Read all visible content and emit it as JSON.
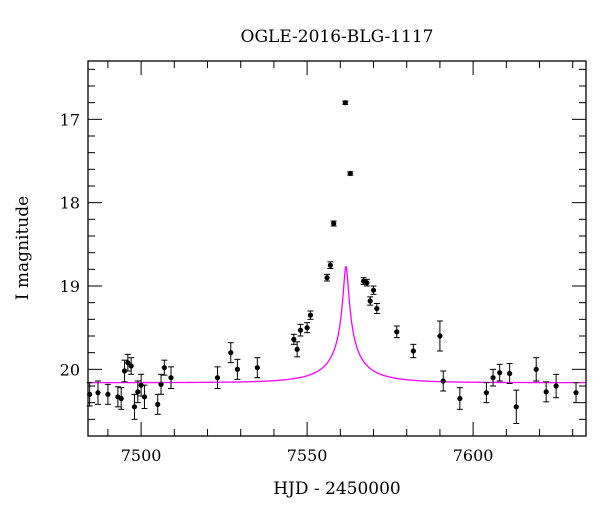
{
  "chart_data": {
    "type": "scatter",
    "title": "OGLE-2016-BLG-1117",
    "xlabel": "HJD - 2450000",
    "ylabel": "I magnitude",
    "xlim": [
      7484,
      7634
    ],
    "ylim": [
      20.8,
      16.3
    ],
    "y_inverted": true,
    "x_ticks": [
      7500,
      7550,
      7600
    ],
    "y_ticks": [
      17,
      18,
      19,
      20
    ],
    "grid": false,
    "colors": {
      "model": "#ff00ff",
      "points": "#000000"
    },
    "series": [
      {
        "type": "scatter_errorbar",
        "x": [
          7484.5,
          7487,
          7490,
          7493,
          7494,
          7495,
          7496,
          7497,
          7498,
          7499,
          7500,
          7501,
          7505,
          7506,
          7507,
          7509,
          7523,
          7527,
          7529,
          7535,
          7546,
          7547,
          7548,
          7550,
          7551,
          7556,
          7557,
          7558,
          7561.5,
          7563,
          7567,
          7568,
          7569,
          7570,
          7571,
          7577,
          7582,
          7590,
          7591,
          7596,
          7604,
          7606,
          7608,
          7611,
          7613,
          7619,
          7622,
          7625,
          7631
        ],
        "y": [
          20.3,
          20.28,
          20.3,
          20.33,
          20.35,
          20.02,
          19.92,
          19.96,
          20.45,
          20.27,
          20.19,
          20.33,
          20.42,
          20.18,
          19.98,
          20.1,
          20.1,
          19.8,
          20.0,
          19.98,
          19.64,
          19.76,
          19.53,
          19.5,
          19.35,
          18.9,
          18.75,
          18.25,
          16.8,
          17.65,
          18.94,
          18.96,
          19.18,
          19.05,
          19.27,
          19.55,
          19.78,
          19.6,
          20.14,
          20.35,
          20.28,
          20.1,
          20.04,
          20.05,
          20.45,
          20.0,
          20.27,
          20.2,
          20.28
        ],
        "yerr": [
          0.14,
          0.14,
          0.12,
          0.12,
          0.13,
          0.13,
          0.1,
          0.1,
          0.15,
          0.13,
          0.13,
          0.14,
          0.12,
          0.12,
          0.09,
          0.13,
          0.13,
          0.12,
          0.12,
          0.12,
          0.06,
          0.09,
          0.07,
          0.06,
          0.05,
          0.04,
          0.04,
          0.03,
          0.02,
          0.02,
          0.04,
          0.04,
          0.05,
          0.05,
          0.06,
          0.07,
          0.08,
          0.18,
          0.12,
          0.13,
          0.12,
          0.1,
          0.1,
          0.12,
          0.2,
          0.14,
          0.12,
          0.14,
          0.12
        ]
      },
      {
        "type": "line",
        "model": "point-lens",
        "t0": 7561.7,
        "tE": 16.5,
        "u0": 0.044,
        "baseline_mag": 20.16,
        "blend_fraction": 0.12
      }
    ]
  }
}
